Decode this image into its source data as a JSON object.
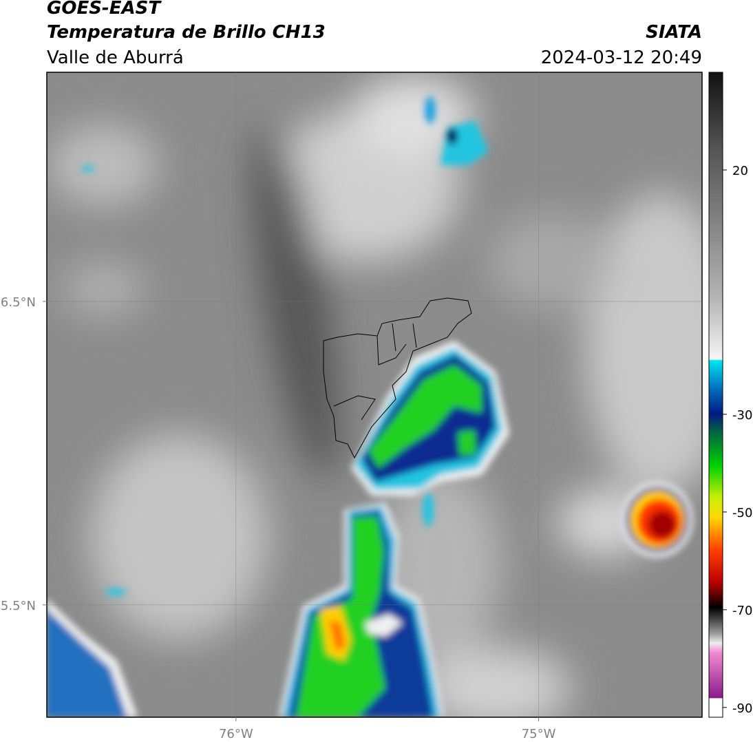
{
  "header": {
    "satellite": "GOES-EAST",
    "product": "Temperatura de Brillo CH13",
    "region": "Valle de Aburrá",
    "agency": "SIATA",
    "datetime": "2024-03-12 20:49"
  },
  "map": {
    "xlim": [
      -76.625,
      -74.46
    ],
    "ylim": [
      5.13,
      7.255
    ],
    "xticks": [
      {
        "value": -76,
        "label": "76°W"
      },
      {
        "value": -75,
        "label": "75°W"
      }
    ],
    "yticks": [
      {
        "value": 6.5,
        "label": "6.5°N"
      },
      {
        "value": 5.5,
        "label": "5.5°N"
      }
    ]
  },
  "colorbar": {
    "lim": [
      -92,
      40
    ],
    "ticks": [
      20,
      -30,
      -50,
      -70,
      -90
    ]
  }
}
